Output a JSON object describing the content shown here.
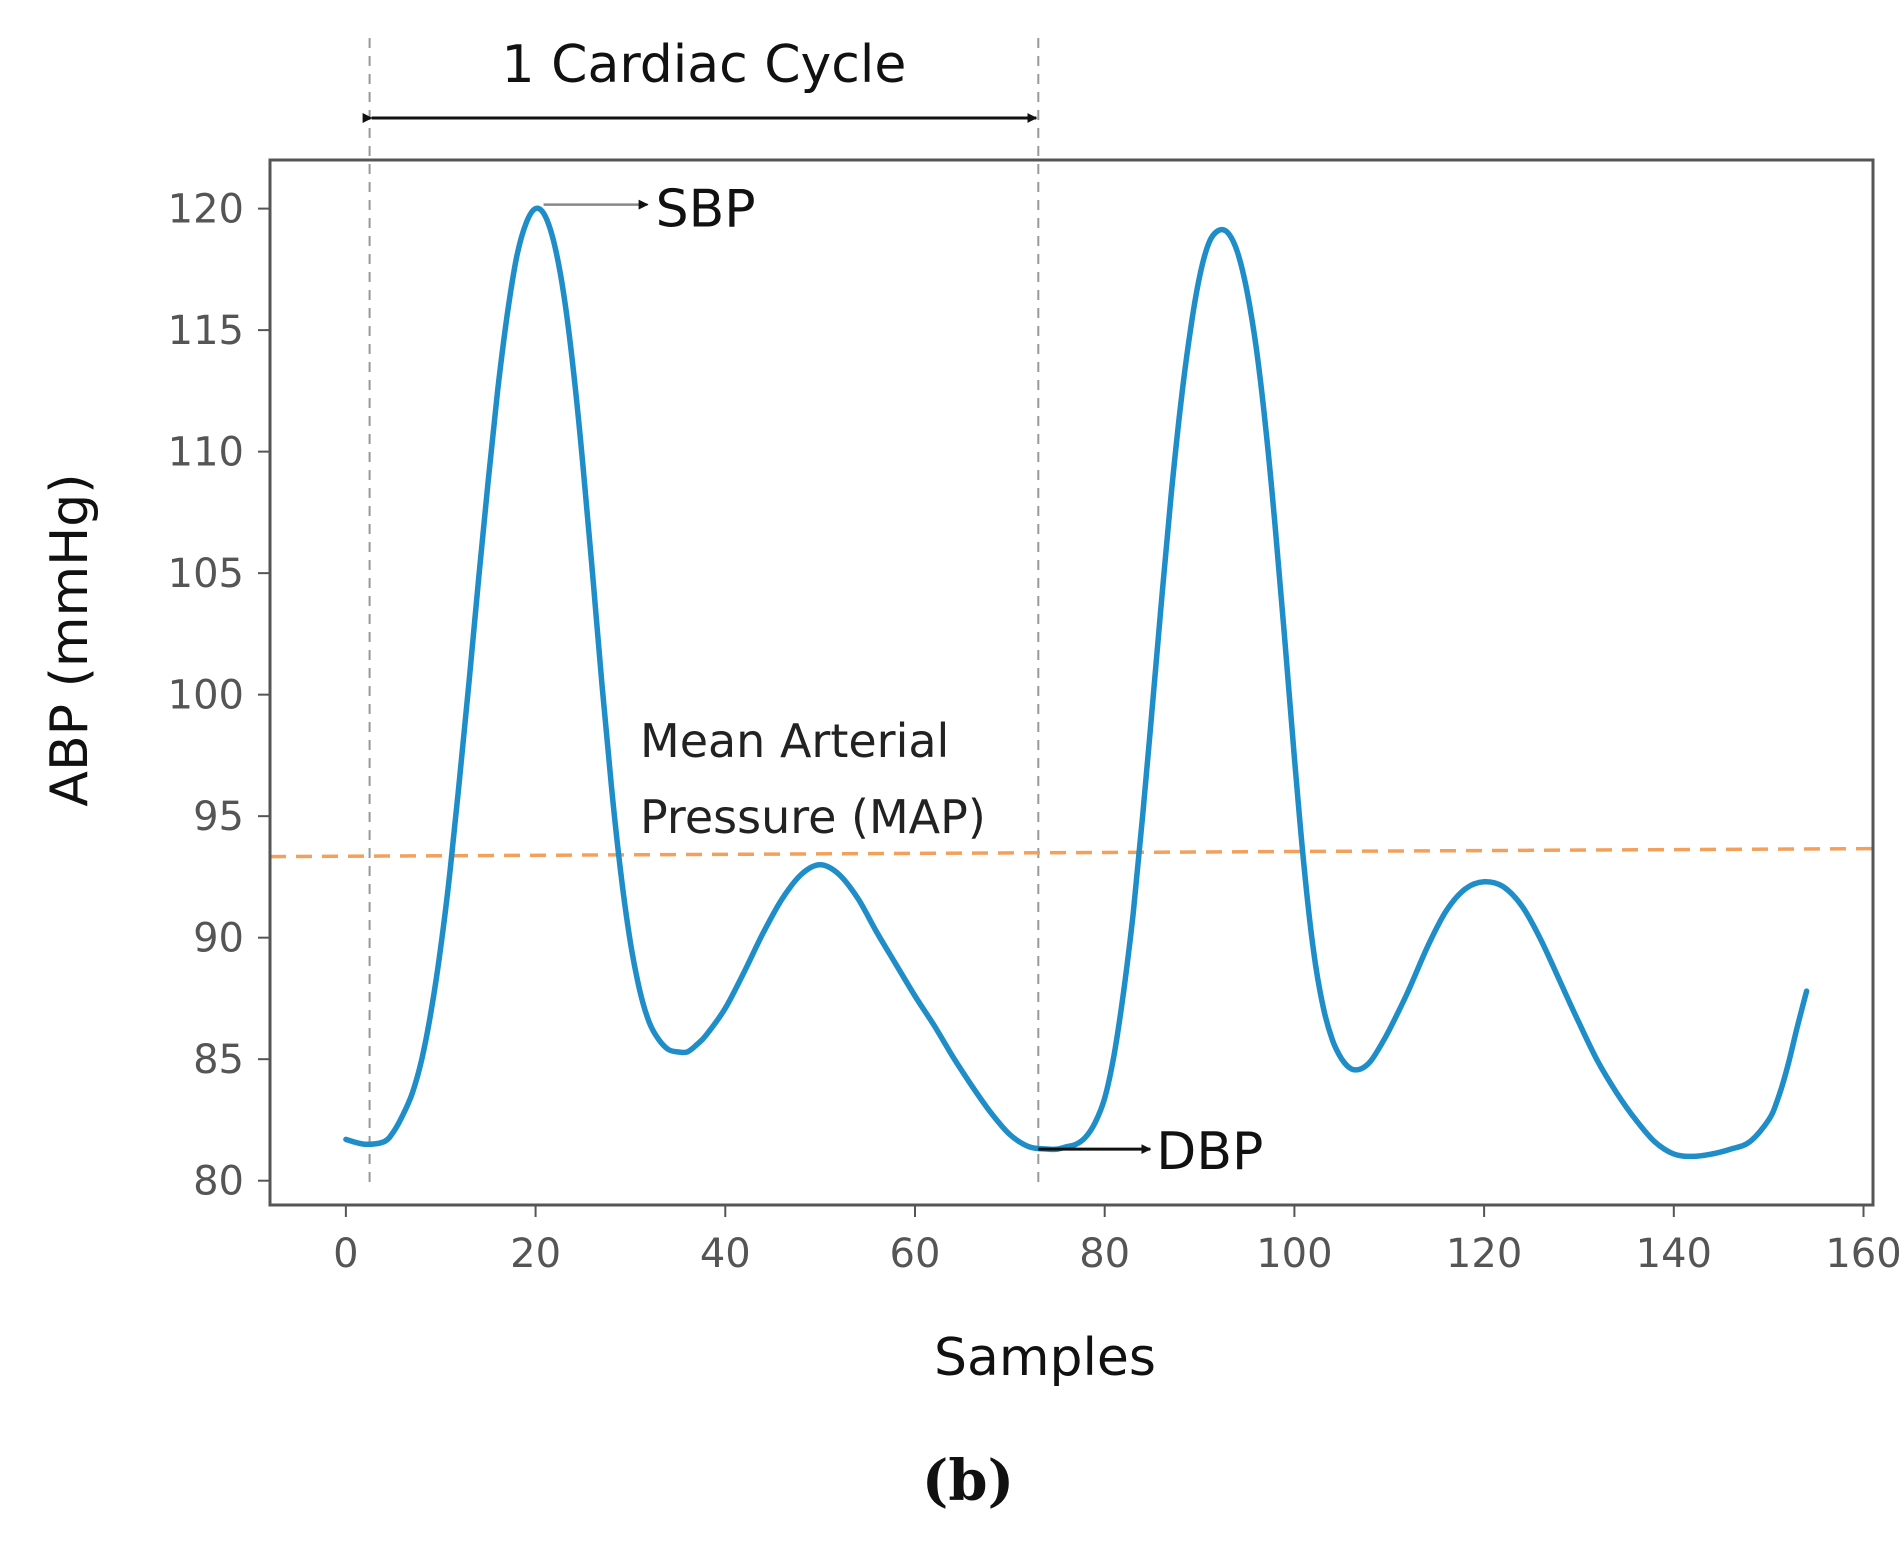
{
  "caption": "(b)",
  "chart_data": {
    "type": "line",
    "title": "",
    "xlabel": "Samples",
    "ylabel": "ABP (mmHg)",
    "xlim": [
      -8,
      161
    ],
    "ylim": [
      79,
      122
    ],
    "xticks": [
      0,
      20,
      40,
      60,
      80,
      100,
      120,
      140,
      160
    ],
    "yticks": [
      80,
      85,
      90,
      95,
      100,
      105,
      110,
      115,
      120
    ],
    "grid": false,
    "colors": {
      "signal": "#1f8dc8",
      "map_line": "#f5a05a",
      "cycle_marker": "#999999",
      "annotation": "#111111"
    },
    "series": [
      {
        "x": [
          0,
          2,
          4,
          5,
          6,
          7,
          8,
          9,
          10,
          11,
          12,
          13,
          14,
          15,
          16,
          17,
          18,
          19,
          20,
          21,
          22,
          23,
          24,
          25,
          26,
          27,
          28,
          29,
          30,
          31,
          32,
          33,
          34,
          35,
          36,
          37,
          38,
          40,
          42,
          44,
          46,
          48,
          50,
          52,
          54,
          56,
          58,
          60,
          62,
          64,
          66,
          68,
          70,
          72,
          74,
          75,
          76,
          77,
          78,
          79,
          80,
          81,
          82,
          83,
          84,
          85,
          86,
          87,
          88,
          89,
          90,
          91,
          92,
          93,
          94,
          95,
          96,
          97,
          98,
          99,
          100,
          101,
          102,
          103,
          104,
          105,
          106,
          107,
          108,
          109,
          110,
          112,
          114,
          116,
          118,
          120,
          122,
          124,
          126,
          128,
          130,
          132,
          134,
          136,
          138,
          140,
          142,
          144,
          146,
          148,
          150,
          151,
          152,
          153,
          154
        ],
        "values": [
          81.7,
          81.5,
          81.6,
          82.0,
          82.7,
          83.6,
          85.0,
          87.0,
          89.6,
          92.8,
          96.6,
          100.6,
          104.8,
          108.8,
          112.5,
          115.6,
          118.0,
          119.4,
          120.0,
          119.7,
          118.5,
          116.4,
          113.3,
          109.4,
          105.0,
          100.4,
          96.2,
          92.6,
          89.8,
          87.8,
          86.5,
          85.8,
          85.4,
          85.3,
          85.3,
          85.6,
          86.0,
          87.1,
          88.6,
          90.2,
          91.6,
          92.6,
          93.0,
          92.6,
          91.6,
          90.2,
          88.9,
          87.6,
          86.4,
          85.1,
          83.9,
          82.8,
          81.9,
          81.4,
          81.3,
          81.3,
          81.4,
          81.5,
          81.8,
          82.4,
          83.4,
          85.2,
          87.8,
          91.0,
          95.0,
          99.4,
          103.9,
          108.2,
          111.9,
          114.9,
          117.2,
          118.6,
          119.1,
          119.0,
          118.2,
          116.6,
          114.2,
          110.9,
          106.8,
          102.2,
          97.4,
          93.0,
          89.5,
          87.2,
          85.8,
          85.0,
          84.6,
          84.6,
          84.9,
          85.5,
          86.2,
          87.8,
          89.6,
          91.1,
          92.0,
          92.3,
          92.1,
          91.3,
          89.9,
          88.2,
          86.5,
          84.9,
          83.6,
          82.5,
          81.6,
          81.1,
          81.0,
          81.1,
          81.3,
          81.6,
          82.5,
          83.4,
          84.7,
          86.3,
          87.8
        ]
      }
    ],
    "mean_arterial_pressure": 93.5,
    "cycle_markers_x": [
      2.5,
      73
    ],
    "annotations": {
      "cycle_label": "1 Cardiac Cycle",
      "map_label_line1": "Mean Arterial",
      "map_label_line2": "Pressure (MAP)",
      "sbp_label": "SBP",
      "dbp_label": "DBP",
      "sbp_point": [
        20,
        120
      ],
      "dbp_point": [
        73,
        81.3
      ]
    }
  }
}
